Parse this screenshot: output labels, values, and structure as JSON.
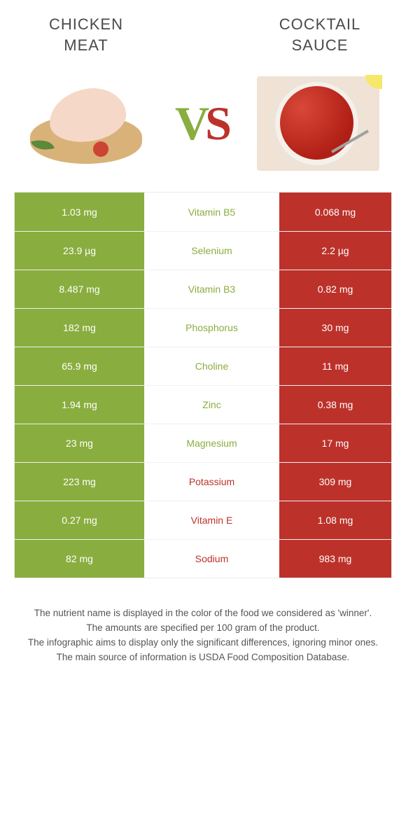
{
  "titles": {
    "left": "CHICKEN\nMEAT",
    "right": "COCKTAIL\nSAUCE"
  },
  "vs": {
    "v": "V",
    "s": "S"
  },
  "colors": {
    "green": "#8aad3f",
    "red": "#bc322b",
    "background": "#ffffff"
  },
  "rows": [
    {
      "left": "1.03 mg",
      "name": "Vitamin B5",
      "right": "0.068 mg",
      "winner": "left"
    },
    {
      "left": "23.9 µg",
      "name": "Selenium",
      "right": "2.2 µg",
      "winner": "left"
    },
    {
      "left": "8.487 mg",
      "name": "Vitamin B3",
      "right": "0.82 mg",
      "winner": "left"
    },
    {
      "left": "182 mg",
      "name": "Phosphorus",
      "right": "30 mg",
      "winner": "left"
    },
    {
      "left": "65.9 mg",
      "name": "Choline",
      "right": "11 mg",
      "winner": "left"
    },
    {
      "left": "1.94 mg",
      "name": "Zinc",
      "right": "0.38 mg",
      "winner": "left"
    },
    {
      "left": "23 mg",
      "name": "Magnesium",
      "right": "17 mg",
      "winner": "left"
    },
    {
      "left": "223 mg",
      "name": "Potassium",
      "right": "309 mg",
      "winner": "right"
    },
    {
      "left": "0.27 mg",
      "name": "Vitamin E",
      "right": "1.08 mg",
      "winner": "right"
    },
    {
      "left": "82 mg",
      "name": "Sodium",
      "right": "983 mg",
      "winner": "right"
    }
  ],
  "footer": {
    "line1": "The nutrient name is displayed in the color of the food we considered as 'winner'.",
    "line2": "The amounts are specified per 100 gram of the product.",
    "line3": "The infographic aims to display only the significant differences, ignoring minor ones.",
    "line4": "The main source of information is USDA Food Composition Database."
  }
}
